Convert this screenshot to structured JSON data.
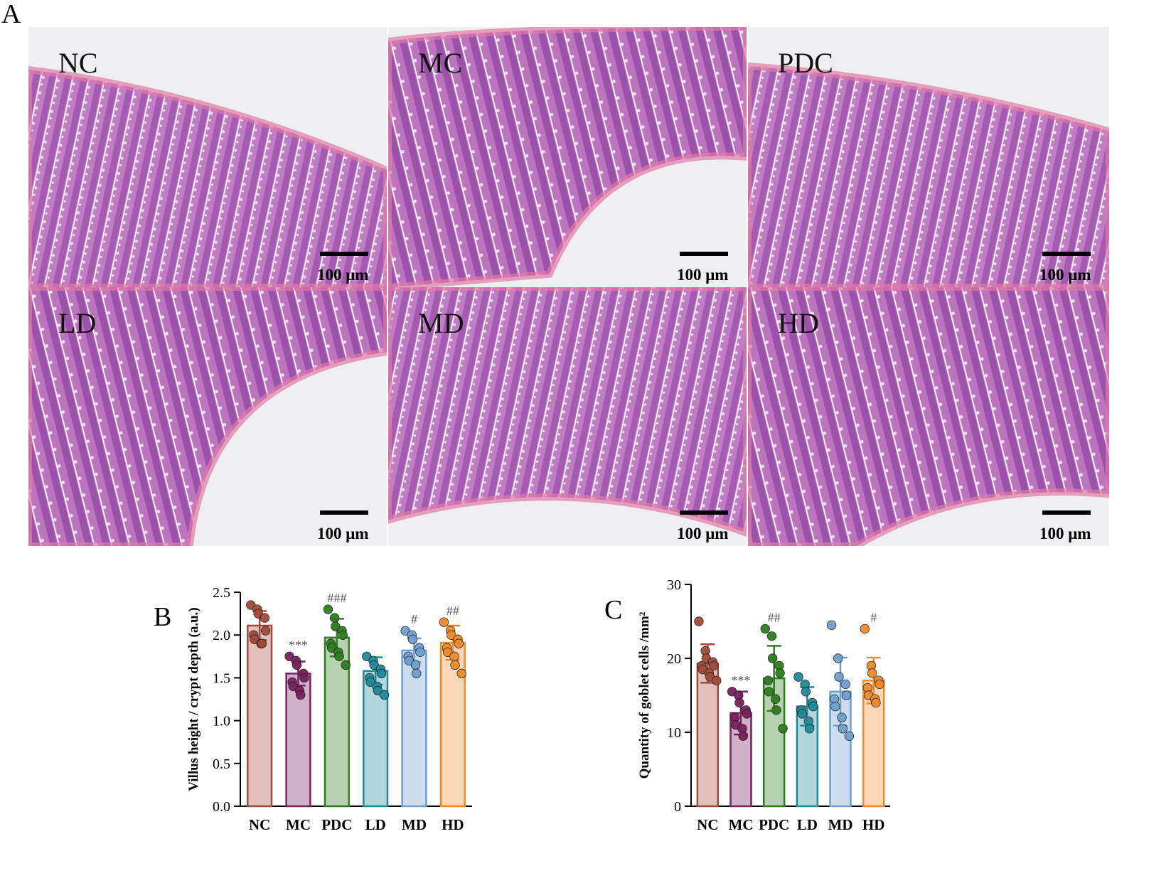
{
  "figure": {
    "panel_labels": [
      "A",
      "B",
      "C"
    ],
    "scale_bar_label": "100 μm"
  },
  "micrographs": [
    {
      "label": "NC",
      "type": "H&E small intestine section"
    },
    {
      "label": "MC",
      "type": "H&E small intestine section"
    },
    {
      "label": "PDC",
      "type": "H&E small intestine section"
    },
    {
      "label": "LD",
      "type": "H&E small intestine section"
    },
    {
      "label": "MD",
      "type": "H&E small intestine section"
    },
    {
      "label": "HD",
      "type": "H&E small intestine section"
    }
  ],
  "colors": {
    "tissue_background": "#ead7e6",
    "tissue_stain": "#9a4aa6",
    "lumen": "#efeef0",
    "axis": "#000000",
    "NC": "#a24a3a",
    "MC": "#7a1f5f",
    "PDC": "#2e7d1e",
    "LD": "#1f8a9a",
    "MD": "#6f9fd0",
    "HD": "#ef8a2a"
  },
  "chart_data": [
    {
      "type": "bar",
      "panel": "B",
      "categories": [
        "NC",
        "MC",
        "PDC",
        "LD",
        "MD",
        "HD"
      ],
      "values": [
        2.11,
        1.55,
        1.97,
        1.58,
        1.82,
        1.91
      ],
      "error": [
        0.17,
        0.14,
        0.22,
        0.16,
        0.14,
        0.2
      ],
      "points": [
        [
          2.35,
          2.3,
          2.25,
          2.2,
          2.05,
          2.0,
          1.95,
          1.9,
          1.9
        ],
        [
          1.75,
          1.7,
          1.65,
          1.55,
          1.5,
          1.45,
          1.4,
          1.35,
          1.3
        ],
        [
          2.3,
          2.2,
          2.1,
          2.05,
          2.0,
          1.9,
          1.85,
          1.8,
          1.75,
          1.65
        ],
        [
          1.75,
          1.7,
          1.65,
          1.6,
          1.55,
          1.5,
          1.45,
          1.4,
          1.35,
          1.3
        ],
        [
          2.05,
          2.0,
          1.95,
          1.85,
          1.8,
          1.75,
          1.7,
          1.65,
          1.55
        ],
        [
          2.15,
          2.05,
          2.0,
          1.95,
          1.9,
          1.85,
          1.8,
          1.75,
          1.65,
          1.55
        ]
      ],
      "significance": [
        "",
        "***",
        "###",
        "",
        "#",
        "##"
      ],
      "ylabel": "Villus height / crypt depth (a.u.)",
      "ylim": [
        0,
        2.5
      ],
      "yticks": [
        "0.0",
        "0.5",
        "1.0",
        "1.5",
        "2.0",
        "2.5"
      ]
    },
    {
      "type": "bar",
      "panel": "C",
      "categories": [
        "NC",
        "MC",
        "PDC",
        "LD",
        "MD",
        "HD"
      ],
      "values": [
        19.3,
        12.6,
        17.3,
        13.5,
        15.5,
        17.0
      ],
      "error": [
        2.6,
        2.9,
        4.4,
        2.6,
        4.6,
        3.1
      ],
      "points": [
        [
          25.0,
          21.0,
          20.0,
          19.5,
          19.0,
          19.0,
          18.5,
          18.0,
          17.5,
          17.0
        ],
        [
          15.5,
          15.0,
          14.0,
          13.0,
          12.5,
          12.0,
          11.0,
          10.5,
          9.5
        ],
        [
          24.0,
          23.0,
          20.0,
          19.0,
          18.0,
          17.0,
          15.5,
          14.5,
          13.0,
          10.5
        ],
        [
          17.5,
          16.5,
          15.5,
          14.0,
          13.5,
          13.0,
          12.5,
          11.5,
          10.5
        ],
        [
          24.5,
          20.0,
          17.5,
          16.5,
          15.0,
          14.5,
          13.5,
          12.0,
          10.5,
          9.5
        ],
        [
          24.0,
          19.0,
          18.0,
          17.0,
          16.5,
          16.0,
          15.0,
          14.5,
          14.0
        ]
      ],
      "significance": [
        "",
        "***",
        "##",
        "",
        "",
        "#"
      ],
      "ylabel": "Quantity of goblet cells /mm²",
      "ylim": [
        0,
        30
      ],
      "yticks": [
        "0",
        "10",
        "20",
        "30"
      ]
    }
  ]
}
